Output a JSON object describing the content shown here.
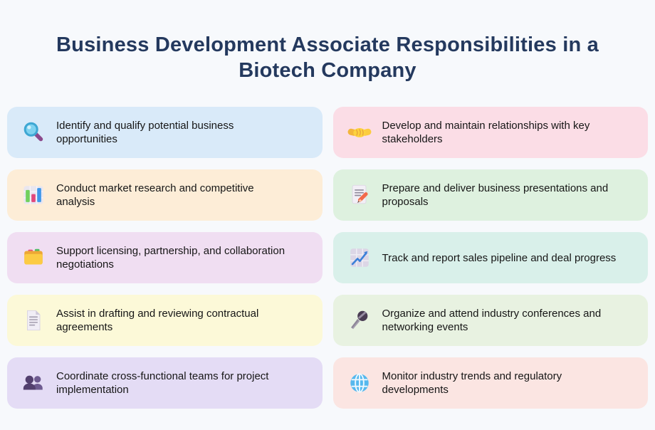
{
  "page": {
    "title": "Business Development Associate Responsibilities in a Biotech Company",
    "background_color": "#f7f9fc",
    "title_color": "#24395e",
    "text_color": "#161616"
  },
  "cards": [
    {
      "icon": "magnifying-glass",
      "text": "Identify and qualify potential business opportunities",
      "bg": "#d9eaf9"
    },
    {
      "icon": "handshake",
      "text": "Develop and maintain relationships with key stakeholders",
      "bg": "#fbdde6"
    },
    {
      "icon": "bar-chart",
      "text": "Conduct market research and competitive analysis",
      "bg": "#fdedd7"
    },
    {
      "icon": "memo-pencil",
      "text": "Prepare and deliver business presentations and proposals",
      "bg": "#def1df"
    },
    {
      "icon": "card-index-dividers",
      "text": "Support licensing, partnership, and collaboration negotiations",
      "bg": "#f0def2"
    },
    {
      "icon": "chart-increasing",
      "text": "Track and report sales pipeline and deal progress",
      "bg": "#d9f0ea"
    },
    {
      "icon": "page-facing-up",
      "text": "Assist in drafting and reviewing contractual agreements",
      "bg": "#fcf9d8"
    },
    {
      "icon": "microphone",
      "text": "Organize and attend industry conferences and networking events",
      "bg": "#e8f2e1"
    },
    {
      "icon": "busts-in-silhouette",
      "text": "Coordinate cross-functional teams for project implementation",
      "bg": "#e4dcf5"
    },
    {
      "icon": "globe",
      "text": "Monitor industry trends and regulatory developments",
      "bg": "#fbe5e2"
    }
  ]
}
